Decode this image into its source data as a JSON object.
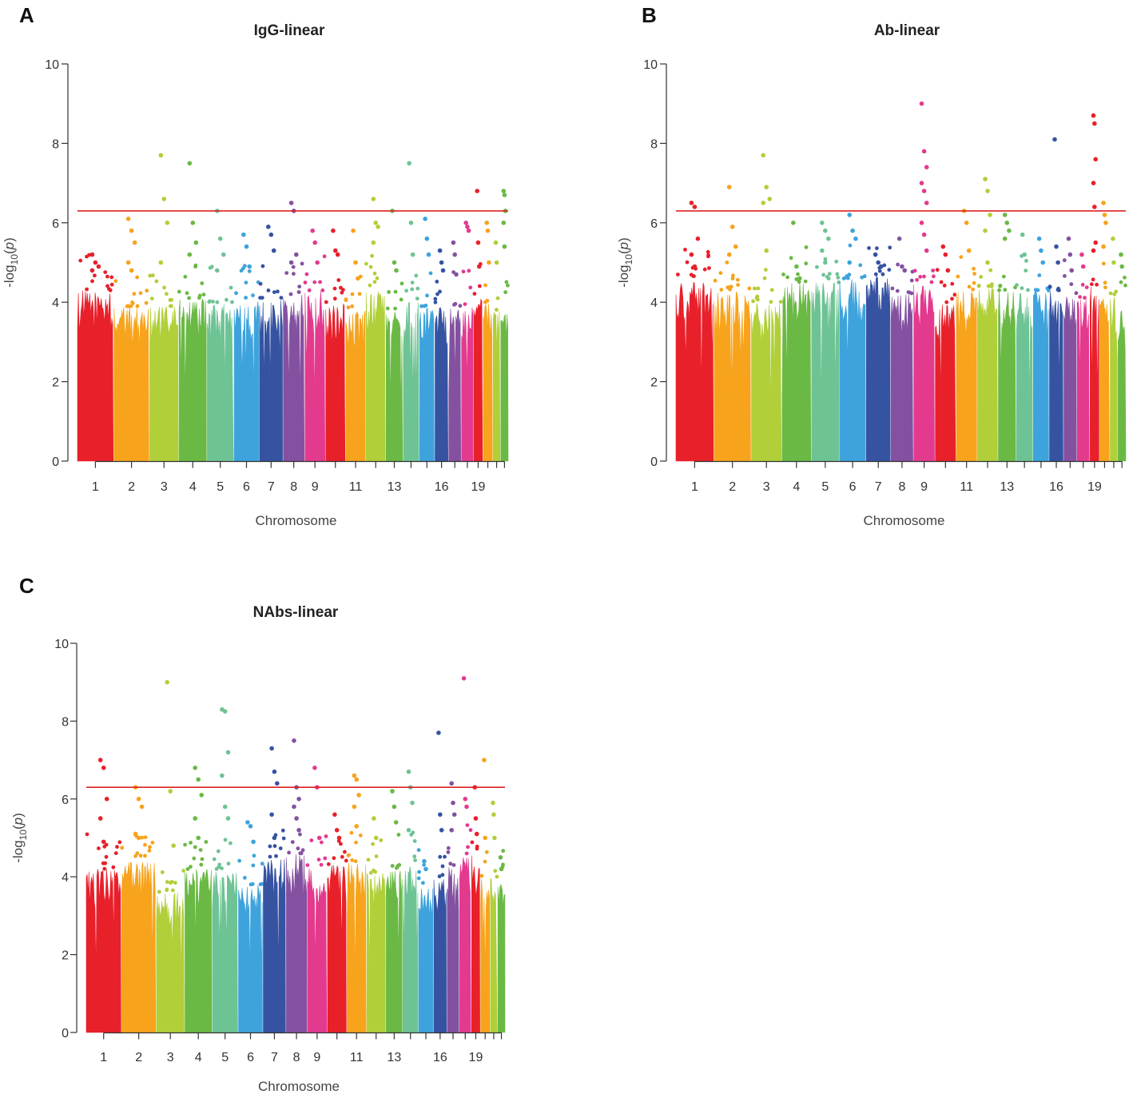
{
  "colors": {
    "chromosomes": [
      "#e8202a",
      "#f7a31c",
      "#b0cf39",
      "#6ab945",
      "#6ec394",
      "#3ea3dc",
      "#3653a2",
      "#8451a0",
      "#e33a8e",
      "#e8202a",
      "#f7a31c",
      "#b0cf39",
      "#6ab945",
      "#6ec394",
      "#3ea3dc",
      "#3653a2",
      "#8451a0",
      "#e33a8e",
      "#e8202a",
      "#f7a31c",
      "#b0cf39",
      "#6ab945"
    ],
    "threshold": "#dd2222",
    "axis": "#333333"
  },
  "chart_data": [
    {
      "panel": "A",
      "type": "scatter",
      "title": "IgG-linear",
      "xlabel": "Chromosome",
      "ylabel": "-log10(p)",
      "ylim": [
        0,
        10
      ],
      "yticks": [
        "0",
        "2",
        "4",
        "6",
        "8",
        "10"
      ],
      "xtick_labels": [
        "1",
        "2",
        "3",
        "4",
        "5",
        "6",
        "7",
        "8",
        "9",
        "11",
        "13",
        "16",
        "19"
      ],
      "xtick_chromosomes": [
        1,
        2,
        3,
        4,
        5,
        6,
        7,
        8,
        9,
        11,
        13,
        16,
        19
      ],
      "threshold": 6.3,
      "series": [
        {
          "chromosome": 1,
          "base_max": 4.3,
          "peaks": [
            5.2,
            5.0,
            4.9,
            4.8
          ]
        },
        {
          "chromosome": 2,
          "base_max": 3.9,
          "peaks": [
            6.1,
            5.8,
            5.5,
            5.0,
            4.8
          ]
        },
        {
          "chromosome": 3,
          "base_max": 3.9,
          "peaks": [
            7.7,
            6.6,
            6.0,
            5.0
          ]
        },
        {
          "chromosome": 4,
          "base_max": 4.1,
          "peaks": [
            7.5,
            6.0,
            5.5,
            5.2
          ]
        },
        {
          "chromosome": 5,
          "base_max": 4.0,
          "peaks": [
            6.3,
            5.6,
            5.2,
            4.8
          ]
        },
        {
          "chromosome": 6,
          "base_max": 4.1,
          "peaks": [
            5.7,
            5.4,
            4.9
          ]
        },
        {
          "chromosome": 7,
          "base_max": 4.1,
          "peaks": [
            5.9,
            5.7,
            5.3
          ]
        },
        {
          "chromosome": 8,
          "base_max": 4.2,
          "peaks": [
            6.5,
            6.3,
            5.2,
            5.0
          ]
        },
        {
          "chromosome": 9,
          "base_max": 4.3,
          "peaks": [
            5.8,
            5.5,
            5.0
          ]
        },
        {
          "chromosome": 10,
          "base_max": 4.0,
          "peaks": [
            5.8,
            5.3,
            5.2
          ]
        },
        {
          "chromosome": 11,
          "base_max": 3.8,
          "peaks": [
            5.8,
            5.0,
            4.6
          ]
        },
        {
          "chromosome": 12,
          "base_max": 4.3,
          "peaks": [
            6.6,
            6.0,
            5.9,
            5.5
          ]
        },
        {
          "chromosome": 13,
          "base_max": 3.8,
          "peaks": [
            6.3,
            5.0,
            4.8
          ]
        },
        {
          "chromosome": 14,
          "base_max": 4.0,
          "peaks": [
            7.5,
            6.0,
            5.2
          ]
        },
        {
          "chromosome": 15,
          "base_max": 3.9,
          "peaks": [
            6.1,
            5.6,
            5.2
          ]
        },
        {
          "chromosome": 16,
          "base_max": 3.9,
          "peaks": [
            5.3,
            5.0,
            4.8
          ]
        },
        {
          "chromosome": 17,
          "base_max": 3.9,
          "peaks": [
            5.5,
            5.2,
            4.7
          ]
        },
        {
          "chromosome": 18,
          "base_max": 3.9,
          "peaks": [
            6.0,
            5.9,
            5.8
          ]
        },
        {
          "chromosome": 19,
          "base_max": 4.2,
          "peaks": [
            6.8,
            5.5,
            4.9
          ]
        },
        {
          "chromosome": 20,
          "base_max": 4.0,
          "peaks": [
            6.0,
            5.8,
            5.0
          ]
        },
        {
          "chromosome": 21,
          "base_max": 3.8,
          "peaks": [
            5.5,
            5.0
          ]
        },
        {
          "chromosome": 22,
          "base_max": 3.7,
          "peaks": [
            6.8,
            6.7,
            6.3,
            6.0,
            5.4
          ]
        }
      ]
    },
    {
      "panel": "B",
      "type": "scatter",
      "title": "Ab-linear",
      "xlabel": "Chromosome",
      "ylabel": "-log10(p)",
      "ylim": [
        0,
        10
      ],
      "yticks": [
        "0",
        "2",
        "4",
        "6",
        "8",
        "10"
      ],
      "xtick_labels": [
        "1",
        "2",
        "3",
        "4",
        "5",
        "6",
        "7",
        "8",
        "9",
        "11",
        "13",
        "16",
        "19"
      ],
      "xtick_chromosomes": [
        1,
        2,
        3,
        4,
        5,
        6,
        7,
        8,
        9,
        11,
        13,
        16,
        19
      ],
      "threshold": 6.3,
      "series": [
        {
          "chromosome": 1,
          "base_max": 4.5,
          "peaks": [
            6.5,
            6.4,
            5.6,
            5.2,
            4.9
          ]
        },
        {
          "chromosome": 2,
          "base_max": 4.3,
          "peaks": [
            6.9,
            5.9,
            5.4,
            5.2
          ]
        },
        {
          "chromosome": 3,
          "base_max": 4.0,
          "peaks": [
            7.7,
            6.9,
            6.6,
            6.5,
            5.3
          ]
        },
        {
          "chromosome": 4,
          "base_max": 4.5,
          "peaks": [
            6.0,
            4.9,
            4.6
          ]
        },
        {
          "chromosome": 5,
          "base_max": 4.5,
          "peaks": [
            6.0,
            5.8,
            5.6,
            5.3,
            5.0
          ]
        },
        {
          "chromosome": 6,
          "base_max": 4.6,
          "peaks": [
            6.2,
            5.8,
            5.6,
            5.0
          ]
        },
        {
          "chromosome": 7,
          "base_max": 4.7,
          "peaks": [
            5.2,
            5.0,
            4.9
          ]
        },
        {
          "chromosome": 8,
          "base_max": 4.2,
          "peaks": [
            5.6,
            4.9,
            4.8
          ]
        },
        {
          "chromosome": 9,
          "base_max": 4.5,
          "peaks": [
            9.0,
            7.8,
            7.4,
            7.0,
            6.8,
            6.5,
            6.0,
            5.7,
            5.3
          ]
        },
        {
          "chromosome": 10,
          "base_max": 4.0,
          "peaks": [
            5.4,
            5.2,
            4.8
          ]
        },
        {
          "chromosome": 11,
          "base_max": 4.3,
          "peaks": [
            6.3,
            6.0,
            5.3
          ]
        },
        {
          "chromosome": 12,
          "base_max": 4.4,
          "peaks": [
            7.1,
            6.8,
            6.2,
            5.8,
            5.0
          ]
        },
        {
          "chromosome": 13,
          "base_max": 4.3,
          "peaks": [
            6.2,
            6.0,
            5.8,
            5.6
          ]
        },
        {
          "chromosome": 14,
          "base_max": 4.3,
          "peaks": [
            5.7,
            5.2
          ]
        },
        {
          "chromosome": 15,
          "base_max": 4.3,
          "peaks": [
            5.6,
            5.3,
            5.0
          ]
        },
        {
          "chromosome": 16,
          "base_max": 4.3,
          "peaks": [
            8.1,
            5.4,
            5.0
          ]
        },
        {
          "chromosome": 17,
          "base_max": 4.2,
          "peaks": [
            5.6,
            5.2,
            4.8
          ]
        },
        {
          "chromosome": 18,
          "base_max": 4.1,
          "peaks": [
            5.2,
            4.9
          ]
        },
        {
          "chromosome": 19,
          "base_max": 4.4,
          "peaks": [
            8.7,
            8.5,
            7.6,
            7.0,
            6.4,
            5.5,
            5.3
          ]
        },
        {
          "chromosome": 20,
          "base_max": 4.2,
          "peaks": [
            6.5,
            6.2,
            6.0,
            5.4
          ]
        },
        {
          "chromosome": 21,
          "base_max": 4.2,
          "peaks": [
            5.6,
            5.0
          ]
        },
        {
          "chromosome": 22,
          "base_max": 3.8,
          "peaks": [
            5.2,
            4.9
          ]
        }
      ]
    },
    {
      "panel": "C",
      "type": "scatter",
      "title": "NAbs-linear",
      "xlabel": "Chromosome",
      "ylabel": "-log10(p)",
      "ylim": [
        0,
        10
      ],
      "yticks": [
        "0",
        "2",
        "4",
        "6",
        "8",
        "10"
      ],
      "xtick_labels": [
        "1",
        "2",
        "3",
        "4",
        "5",
        "6",
        "7",
        "8",
        "9",
        "11",
        "13",
        "16",
        "19"
      ],
      "xtick_chromosomes": [
        1,
        2,
        3,
        4,
        5,
        6,
        7,
        8,
        9,
        11,
        13,
        16,
        19
      ],
      "threshold": 6.3,
      "series": [
        {
          "chromosome": 1,
          "base_max": 4.2,
          "peaks": [
            7.0,
            6.8,
            6.0,
            5.5,
            4.9
          ]
        },
        {
          "chromosome": 2,
          "base_max": 4.5,
          "peaks": [
            6.3,
            6.0,
            5.8,
            5.1,
            5.0
          ]
        },
        {
          "chromosome": 3,
          "base_max": 3.6,
          "peaks": [
            9.0,
            6.2,
            4.8
          ]
        },
        {
          "chromosome": 4,
          "base_max": 4.2,
          "peaks": [
            6.8,
            6.5,
            6.1,
            5.5,
            5.0
          ]
        },
        {
          "chromosome": 5,
          "base_max": 4.2,
          "peaks": [
            8.3,
            8.25,
            7.2,
            6.6,
            5.8,
            5.5
          ]
        },
        {
          "chromosome": 6,
          "base_max": 3.8,
          "peaks": [
            5.4,
            5.3,
            4.9
          ]
        },
        {
          "chromosome": 7,
          "base_max": 4.5,
          "peaks": [
            7.3,
            6.7,
            6.4,
            5.6,
            5.0
          ]
        },
        {
          "chromosome": 8,
          "base_max": 4.6,
          "peaks": [
            7.5,
            6.3,
            6.0,
            5.8,
            5.5,
            5.2
          ]
        },
        {
          "chromosome": 9,
          "base_max": 4.3,
          "peaks": [
            6.8,
            6.3,
            5.0
          ]
        },
        {
          "chromosome": 10,
          "base_max": 4.3,
          "peaks": [
            5.6,
            5.2,
            5.0
          ]
        },
        {
          "chromosome": 11,
          "base_max": 4.4,
          "peaks": [
            6.6,
            6.5,
            6.1,
            5.8,
            5.3
          ]
        },
        {
          "chromosome": 12,
          "base_max": 4.1,
          "peaks": [
            5.5,
            5.0
          ]
        },
        {
          "chromosome": 13,
          "base_max": 4.2,
          "peaks": [
            6.2,
            5.8,
            5.4
          ]
        },
        {
          "chromosome": 14,
          "base_max": 4.3,
          "peaks": [
            6.7,
            6.3,
            5.9,
            5.2
          ]
        },
        {
          "chromosome": 15,
          "base_max": 3.8,
          "peaks": [
            4.4,
            4.2
          ]
        },
        {
          "chromosome": 16,
          "base_max": 4.0,
          "peaks": [
            7.7,
            5.6,
            5.2
          ]
        },
        {
          "chromosome": 17,
          "base_max": 4.3,
          "peaks": [
            6.4,
            5.9,
            5.6,
            5.2
          ]
        },
        {
          "chromosome": 18,
          "base_max": 4.5,
          "peaks": [
            9.1,
            6.0,
            5.8
          ]
        },
        {
          "chromosome": 19,
          "base_max": 4.7,
          "peaks": [
            6.3,
            5.5,
            5.1
          ]
        },
        {
          "chromosome": 20,
          "base_max": 4.0,
          "peaks": [
            7.0,
            5.0
          ]
        },
        {
          "chromosome": 21,
          "base_max": 4.0,
          "peaks": [
            5.9,
            5.6,
            5.0
          ]
        },
        {
          "chromosome": 22,
          "base_max": 3.8,
          "peaks": [
            4.5,
            4.2
          ]
        }
      ]
    }
  ]
}
